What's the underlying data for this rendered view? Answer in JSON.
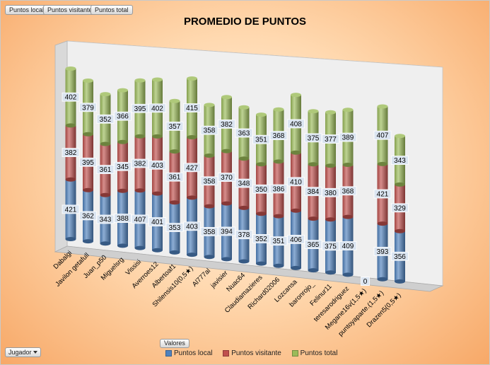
{
  "header": {
    "field_buttons": [
      "Puntos local",
      "Puntos visitante",
      "Puntos total"
    ]
  },
  "footer": {
    "filter_label": "Jugador",
    "values_label": "Valores"
  },
  "chart_data": {
    "type": "bar",
    "stacked": true,
    "three_d": true,
    "title": "PROMEDIO DE PUNTOS",
    "categories": [
      "Dabalgi",
      "Javilon getafull",
      "Juan_p50",
      "Miguelsrg",
      "Vissisi",
      "Averroes12",
      "Albertoaf1",
      "Shilensis10(0,5★)",
      "Al777al",
      "javisier",
      "Nuac64",
      "Claudiamazieres",
      "Richard02006",
      "Lozcansa",
      "baronrojo_",
      "Felinur11",
      "teresarodriguez",
      "Megane16v(1,5★)",
      "puntoyaparte.(1,5★)",
      "Drazen5(0,5★)"
    ],
    "series": [
      {
        "name": "Puntos local",
        "color": "#4f81bd",
        "values": [
          421,
          362,
          343,
          388,
          407,
          401,
          353,
          403,
          358,
          394,
          378,
          352,
          351,
          406,
          365,
          375,
          409,
          0,
          393,
          356
        ]
      },
      {
        "name": "Puntos visitante",
        "color": "#c0504d",
        "values": [
          382,
          395,
          361,
          345,
          382,
          403,
          361,
          427,
          358,
          370,
          348,
          350,
          386,
          410,
          384,
          380,
          368,
          null,
          421,
          329
        ]
      },
      {
        "name": "Puntos total",
        "color": "#9bbb59",
        "values": [
          402,
          379,
          352,
          366,
          395,
          402,
          357,
          415,
          358,
          382,
          363,
          351,
          368,
          408,
          375,
          377,
          389,
          null,
          407,
          343
        ]
      }
    ],
    "legend": "bottom"
  }
}
